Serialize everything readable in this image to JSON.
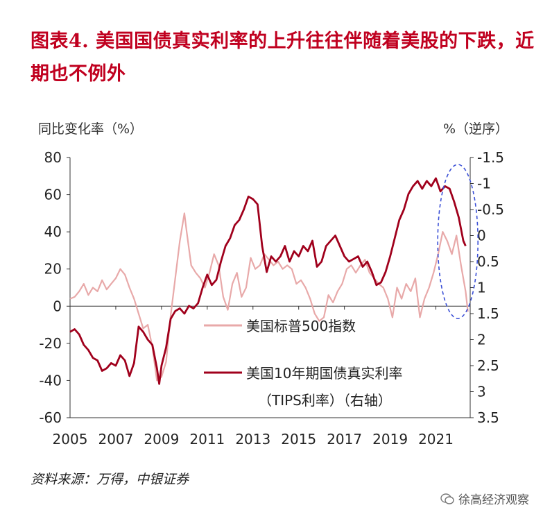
{
  "title": "图表4.  美国国债真实利率的上升往往伴随着美股的下跌，近期也不例外",
  "source": "资料来源：万得，中银证券",
  "watermark": "徐高经济观察",
  "chart_data": {
    "type": "line",
    "ylabel_left": "同比变化率（%）",
    "ylabel_right": "%（逆序）",
    "ylim_left": [
      -60,
      80
    ],
    "ylim_right": [
      -1.5,
      3.5
    ],
    "right_axis_inverted": true,
    "left_ticks": [
      "80",
      "60",
      "40",
      "20",
      "0",
      "-20",
      "-40",
      "-60"
    ],
    "right_ticks": [
      "-1.5",
      "-1",
      "-0.5",
      "0",
      "0.5",
      "1",
      "1.5",
      "2",
      "2.5",
      "3",
      "3.5"
    ],
    "x_ticks": [
      "2005",
      "2007",
      "2009",
      "2011",
      "2013",
      "2015",
      "2017",
      "2019",
      "2021"
    ],
    "xlim": [
      2005,
      2022.5
    ],
    "legend": {
      "position": "center",
      "items": [
        "美国标普500指数",
        "美国10年期国债真实利率",
        "（TIPS利率）（右轴）"
      ]
    },
    "grid": false,
    "highlight": {
      "shape": "dashed-ellipse",
      "color": "#3a4fd6",
      "x_range": [
        2021.3,
        2022.5
      ]
    },
    "series": [
      {
        "name": "美国标普500指数",
        "axis": "left",
        "color": "#e8a9a9",
        "x": [
          2005.0,
          2005.2,
          2005.4,
          2005.6,
          2005.8,
          2006.0,
          2006.2,
          2006.4,
          2006.6,
          2006.8,
          2007.0,
          2007.2,
          2007.4,
          2007.6,
          2007.8,
          2008.0,
          2008.2,
          2008.4,
          2008.6,
          2008.8,
          2009.0,
          2009.2,
          2009.4,
          2009.6,
          2009.8,
          2010.0,
          2010.1,
          2010.3,
          2010.5,
          2010.7,
          2010.9,
          2011.1,
          2011.3,
          2011.5,
          2011.7,
          2011.9,
          2012.1,
          2012.3,
          2012.5,
          2012.7,
          2012.9,
          2013.1,
          2013.3,
          2013.5,
          2013.7,
          2013.9,
          2014.1,
          2014.3,
          2014.5,
          2014.7,
          2014.9,
          2015.1,
          2015.3,
          2015.5,
          2015.7,
          2015.9,
          2016.1,
          2016.3,
          2016.5,
          2016.7,
          2016.9,
          2017.1,
          2017.3,
          2017.5,
          2017.7,
          2017.9,
          2018.1,
          2018.3,
          2018.5,
          2018.7,
          2018.9,
          2019.1,
          2019.3,
          2019.5,
          2019.7,
          2019.9,
          2020.1,
          2020.3,
          2020.5,
          2020.7,
          2020.9,
          2021.1,
          2021.3,
          2021.5,
          2021.7,
          2021.9,
          2022.1,
          2022.3,
          2022.4
        ],
        "y": [
          4,
          5,
          8,
          12,
          6,
          10,
          8,
          14,
          9,
          12,
          15,
          20,
          17,
          10,
          4,
          -4,
          -12,
          -10,
          -22,
          -40,
          -38,
          -30,
          -5,
          15,
          35,
          50,
          40,
          22,
          18,
          15,
          10,
          18,
          28,
          22,
          5,
          -2,
          12,
          18,
          5,
          10,
          26,
          20,
          22,
          28,
          25,
          22,
          24,
          20,
          22,
          20,
          12,
          14,
          10,
          4,
          -4,
          -8,
          -6,
          6,
          2,
          8,
          12,
          20,
          22,
          18,
          22,
          25,
          18,
          15,
          12,
          10,
          4,
          -6,
          10,
          4,
          12,
          8,
          15,
          -6,
          4,
          10,
          18,
          28,
          40,
          35,
          28,
          38,
          22,
          8,
          -3
        ]
      },
      {
        "name": "美国10年期国债真实利率（TIPS利率）",
        "axis": "right",
        "color": "#a0001c",
        "x": [
          2005.0,
          2005.2,
          2005.4,
          2005.6,
          2005.8,
          2006.0,
          2006.2,
          2006.4,
          2006.6,
          2006.8,
          2007.0,
          2007.2,
          2007.4,
          2007.6,
          2007.8,
          2008.0,
          2008.2,
          2008.4,
          2008.6,
          2008.8,
          2008.9,
          2009.0,
          2009.2,
          2009.4,
          2009.6,
          2009.8,
          2010.0,
          2010.2,
          2010.4,
          2010.6,
          2010.8,
          2011.0,
          2011.2,
          2011.4,
          2011.6,
          2011.8,
          2012.0,
          2012.2,
          2012.4,
          2012.6,
          2012.8,
          2013.0,
          2013.2,
          2013.4,
          2013.6,
          2013.8,
          2014.0,
          2014.2,
          2014.4,
          2014.6,
          2014.8,
          2015.0,
          2015.2,
          2015.4,
          2015.6,
          2015.8,
          2016.0,
          2016.2,
          2016.4,
          2016.6,
          2016.8,
          2017.0,
          2017.2,
          2017.4,
          2017.6,
          2017.8,
          2018.0,
          2018.2,
          2018.4,
          2018.6,
          2018.8,
          2019.0,
          2019.2,
          2019.4,
          2019.6,
          2019.8,
          2020.0,
          2020.2,
          2020.4,
          2020.6,
          2020.8,
          2021.0,
          2021.2,
          2021.4,
          2021.6,
          2021.8,
          2022.0,
          2022.2,
          2022.3
        ],
        "y": [
          1.85,
          1.8,
          1.9,
          2.1,
          2.2,
          2.35,
          2.4,
          2.6,
          2.55,
          2.45,
          2.5,
          2.3,
          2.4,
          2.7,
          2.45,
          1.75,
          1.85,
          2.0,
          2.1,
          2.55,
          2.85,
          2.5,
          2.15,
          1.6,
          1.45,
          1.4,
          1.5,
          1.35,
          1.4,
          1.3,
          1.0,
          0.75,
          0.95,
          0.85,
          0.5,
          0.2,
          0.05,
          -0.2,
          -0.3,
          -0.5,
          -0.75,
          -0.7,
          -0.6,
          0.2,
          0.7,
          0.4,
          0.5,
          0.4,
          0.2,
          0.5,
          0.3,
          0.4,
          0.2,
          0.3,
          0.1,
          0.6,
          0.5,
          0.2,
          0.1,
          0.0,
          0.2,
          0.4,
          0.5,
          0.45,
          0.4,
          0.6,
          0.5,
          0.7,
          0.95,
          0.9,
          0.7,
          0.4,
          0.05,
          -0.3,
          -0.5,
          -0.8,
          -0.95,
          -1.05,
          -0.9,
          -1.05,
          -0.95,
          -1.1,
          -0.85,
          -0.95,
          -0.9,
          -0.65,
          -0.35,
          0.1,
          0.2
        ]
      }
    ]
  }
}
